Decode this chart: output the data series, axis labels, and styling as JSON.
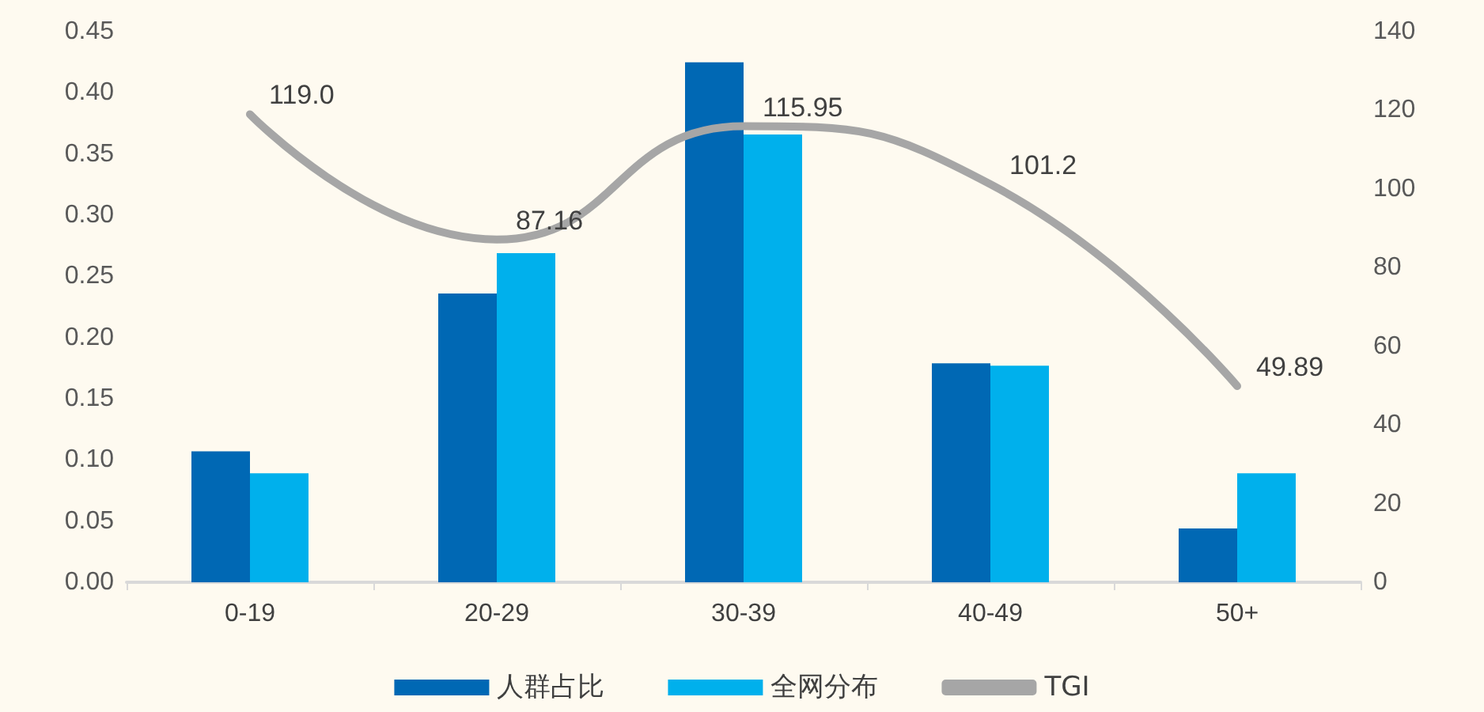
{
  "chart_data": {
    "type": "bar",
    "categories": [
      "0-19",
      "20-29",
      "30-39",
      "40-49",
      "50+"
    ],
    "series": [
      {
        "name": "人群占比",
        "color": "#0068b4",
        "values": [
          0.107,
          0.236,
          0.425,
          0.179,
          0.044
        ]
      },
      {
        "name": "全网分布",
        "color": "#00b0ec",
        "values": [
          0.089,
          0.269,
          0.366,
          0.177,
          0.089
        ]
      },
      {
        "name": "TGI",
        "type": "line",
        "axis": "y2",
        "color": "#a6a6a6",
        "values": [
          119.0,
          87.16,
          115.95,
          101.2,
          49.89
        ],
        "value_labels": [
          "119.0",
          "87.16",
          "115.95",
          "101.2",
          "49.89"
        ]
      }
    ],
    "ylim": [
      0,
      0.45
    ],
    "yticks": [
      {
        "value": 0,
        "label": "0.00"
      },
      {
        "value": 0.05,
        "label": "0.05"
      },
      {
        "value": 0.1,
        "label": "0.10"
      },
      {
        "value": 0.15,
        "label": "0.15"
      },
      {
        "value": 0.2,
        "label": "0.20"
      },
      {
        "value": 0.25,
        "label": "0.25"
      },
      {
        "value": 0.3,
        "label": "0.30"
      },
      {
        "value": 0.35,
        "label": "0.35"
      },
      {
        "value": 0.4,
        "label": "0.40"
      },
      {
        "value": 0.45,
        "label": "0.45"
      }
    ],
    "y2lim": [
      0,
      140
    ],
    "y2ticks": [
      0,
      20,
      40,
      60,
      80,
      100,
      120,
      140
    ],
    "grid": false,
    "legend": "bottom",
    "marker": "none",
    "line_style": "solid"
  }
}
